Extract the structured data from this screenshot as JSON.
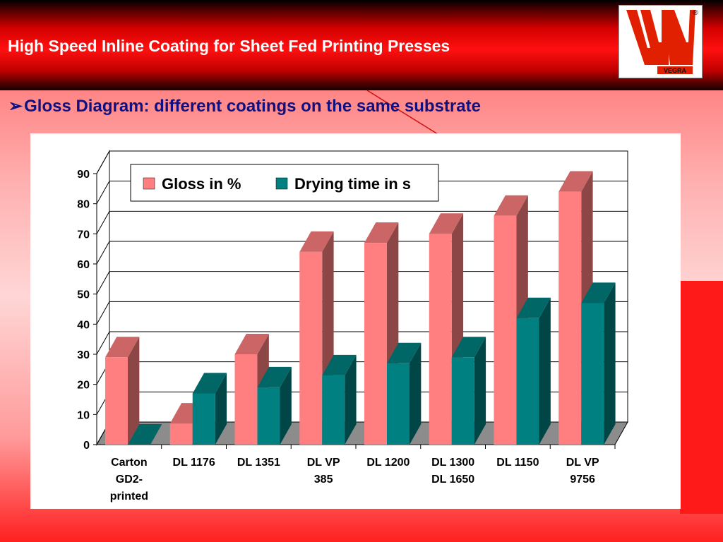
{
  "header": {
    "title": "High Speed Inline Coating for Sheet Fed Printing Presses"
  },
  "logo": {
    "text": "VEGRA",
    "mark": "®"
  },
  "subtitle": {
    "bullet": "➢",
    "text": "Gloss Diagram:  different coatings on the same substrate"
  },
  "colors": {
    "gloss": "#ff7f80",
    "drying": "#008080",
    "header_red": "#e00000",
    "title_blue": "#101080"
  },
  "chart_data": {
    "type": "bar",
    "three_d": true,
    "categories": [
      [
        "Carton",
        "GD2-",
        "printed"
      ],
      [
        "DL 1176"
      ],
      [
        "DL 1351"
      ],
      [
        "DL VP",
        "385"
      ],
      [
        "DL 1200"
      ],
      [
        "DL 1300",
        "DL 1650"
      ],
      [
        "DL 1150"
      ],
      [
        "DL VP",
        "9756"
      ]
    ],
    "series": [
      {
        "name": "Gloss in %",
        "values": [
          29,
          7,
          30,
          64,
          67,
          70,
          76,
          84
        ],
        "color": "#ff7f80"
      },
      {
        "name": "Drying time in s",
        "values": [
          0,
          17,
          19,
          23,
          27,
          29,
          42,
          47
        ],
        "color": "#008080"
      }
    ],
    "yticks": [
      0,
      10,
      20,
      30,
      40,
      50,
      60,
      70,
      80,
      90
    ],
    "ylim": [
      0,
      90
    ],
    "grid": true,
    "legend_position": "top"
  }
}
